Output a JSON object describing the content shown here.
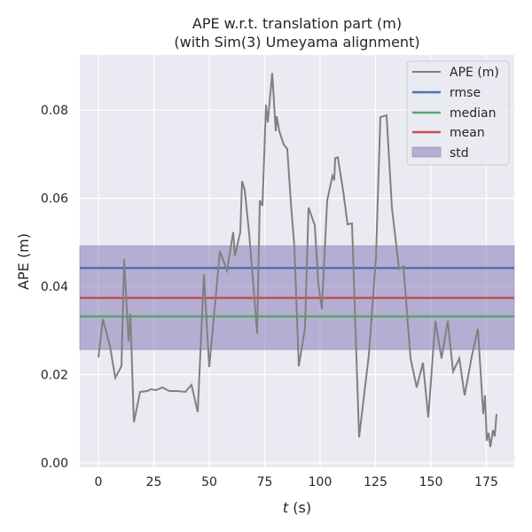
{
  "chart_data": {
    "type": "line",
    "title": "APE w.r.t. translation part (m)",
    "subtitle": "(with Sim(3) Umeyama alignment)",
    "xlabel_var": "t",
    "xlabel_unit": " (s)",
    "ylabel": "APE (m)",
    "xlim": [
      -8.4,
      187.6
    ],
    "ylim": [
      -0.001,
      0.0925
    ],
    "xticks": [
      0,
      25,
      50,
      75,
      100,
      125,
      150,
      175
    ],
    "xtick_labels": [
      "0",
      "25",
      "50",
      "75",
      "100",
      "125",
      "150",
      "175"
    ],
    "yticks": [
      0,
      0.02,
      0.04,
      0.06,
      0.08
    ],
    "ytick_labels": [
      "0.00",
      "0.02",
      "0.04",
      "0.06",
      "0.08"
    ],
    "grid": true,
    "legend_position": "top-right",
    "legend": [
      "APE (m)",
      "rmse",
      "median",
      "mean",
      "std"
    ],
    "colors": {
      "ape": "#808080",
      "rmse": "#4c72b0",
      "median": "#55a868",
      "mean": "#c44e52",
      "std": "#8172b2",
      "bg": "#eaeaf2"
    },
    "stats": {
      "rmse": 0.0442,
      "median": 0.0332,
      "mean": 0.0374,
      "std_low": 0.0257,
      "std_high": 0.0492
    },
    "series": [
      {
        "name": "APE (m)",
        "x": [
          0,
          2,
          5.2,
          7.6,
          10.4,
          11.6,
          13.6,
          14.4,
          16,
          18.8,
          22,
          23.6,
          26,
          28.8,
          32,
          35.6,
          39.2,
          42,
          44.8,
          47.6,
          50,
          54.8,
          58,
          60.8,
          61.6,
          64,
          64.8,
          66,
          68,
          69.6,
          71.6,
          72.8,
          74,
          75.6,
          76.4,
          78.4,
          80,
          80.4,
          81.6,
          83.6,
          85.2,
          86.8,
          88.4,
          90.4,
          93.2,
          94.8,
          97.6,
          99.2,
          100.8,
          103.2,
          105.6,
          106.4,
          106.8,
          108,
          110.4,
          112.4,
          114.4,
          117.6,
          122,
          125.2,
          127.2,
          130,
          132.4,
          135.6,
          137.6,
          140.8,
          143.6,
          146.4,
          148.8,
          152,
          154.8,
          157.6,
          160,
          162.8,
          165.2,
          168.4,
          171.2,
          173.6,
          174.4,
          175.2,
          176,
          176.8,
          178,
          178.8,
          179.6
        ],
        "y": [
          0.0239,
          0.0326,
          0.0265,
          0.0193,
          0.0219,
          0.0462,
          0.0275,
          0.0338,
          0.0092,
          0.0161,
          0.0163,
          0.0167,
          0.0165,
          0.0171,
          0.0163,
          0.0163,
          0.0161,
          0.0177,
          0.0115,
          0.0428,
          0.0217,
          0.048,
          0.0436,
          0.0523,
          0.047,
          0.0523,
          0.0639,
          0.0619,
          0.052,
          0.0422,
          0.0293,
          0.0595,
          0.0583,
          0.0812,
          0.0772,
          0.0884,
          0.0752,
          0.0786,
          0.0752,
          0.0722,
          0.0712,
          0.0591,
          0.049,
          0.0219,
          0.0306,
          0.0579,
          0.0539,
          0.0406,
          0.0348,
          0.0595,
          0.0651,
          0.0641,
          0.0691,
          0.0693,
          0.0617,
          0.0541,
          0.0543,
          0.0058,
          0.0245,
          0.0466,
          0.0784,
          0.0788,
          0.0579,
          0.044,
          0.0446,
          0.0237,
          0.0171,
          0.0227,
          0.0103,
          0.0322,
          0.0237,
          0.0322,
          0.0207,
          0.0237,
          0.0153,
          0.0241,
          0.0304,
          0.0111,
          0.0153,
          0.005,
          0.0068,
          0.0036,
          0.0074,
          0.006,
          0.0111
        ]
      }
    ]
  }
}
